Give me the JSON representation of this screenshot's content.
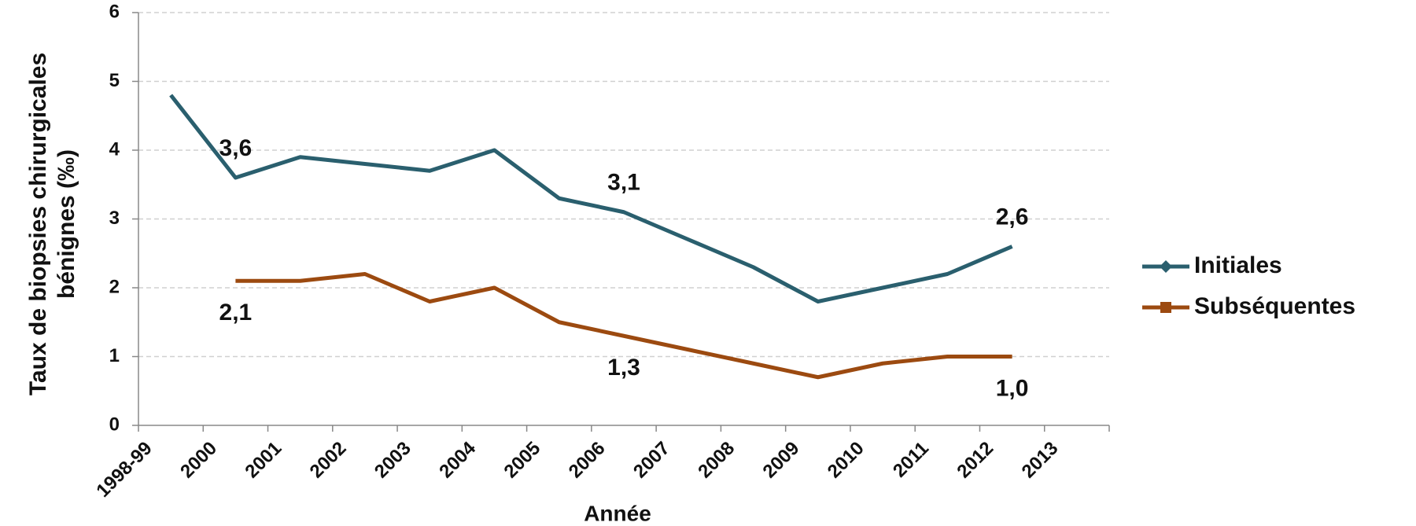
{
  "chart_data": {
    "type": "line",
    "x_label": "Année",
    "y_label": [
      "Taux de biopsies chirurgicales",
      "bénignes (‰)"
    ],
    "categories": [
      "1998-99",
      "2000",
      "2001",
      "2002",
      "2003",
      "2004",
      "2005",
      "2006",
      "2007",
      "2008",
      "2009",
      "2010",
      "2011",
      "2012",
      "2013"
    ],
    "series": [
      {
        "name": "Initiales",
        "color": "#2a5f6e",
        "marker": "diamond",
        "values": [
          4.8,
          3.6,
          3.9,
          3.8,
          3.7,
          4.0,
          3.3,
          3.1,
          2.7,
          2.3,
          1.8,
          2.0,
          2.2,
          2.6,
          null
        ],
        "value_labels": [
          null,
          "3,6",
          null,
          null,
          null,
          null,
          null,
          "3,1",
          null,
          null,
          null,
          null,
          null,
          "2,6",
          null
        ]
      },
      {
        "name": "Subséquentes",
        "color": "#9c4a10",
        "marker": "square",
        "values": [
          null,
          2.1,
          2.1,
          2.2,
          1.8,
          2.0,
          1.5,
          1.3,
          1.1,
          0.9,
          0.7,
          0.9,
          1.0,
          1.0,
          null
        ],
        "value_labels": [
          null,
          "2,1",
          null,
          null,
          null,
          null,
          null,
          "1,3",
          null,
          null,
          null,
          null,
          null,
          "1,0",
          null
        ]
      }
    ],
    "ylim": [
      0,
      6
    ],
    "yticks": [
      0,
      1,
      2,
      3,
      4,
      5,
      6
    ],
    "grid": true,
    "legend": "right"
  }
}
